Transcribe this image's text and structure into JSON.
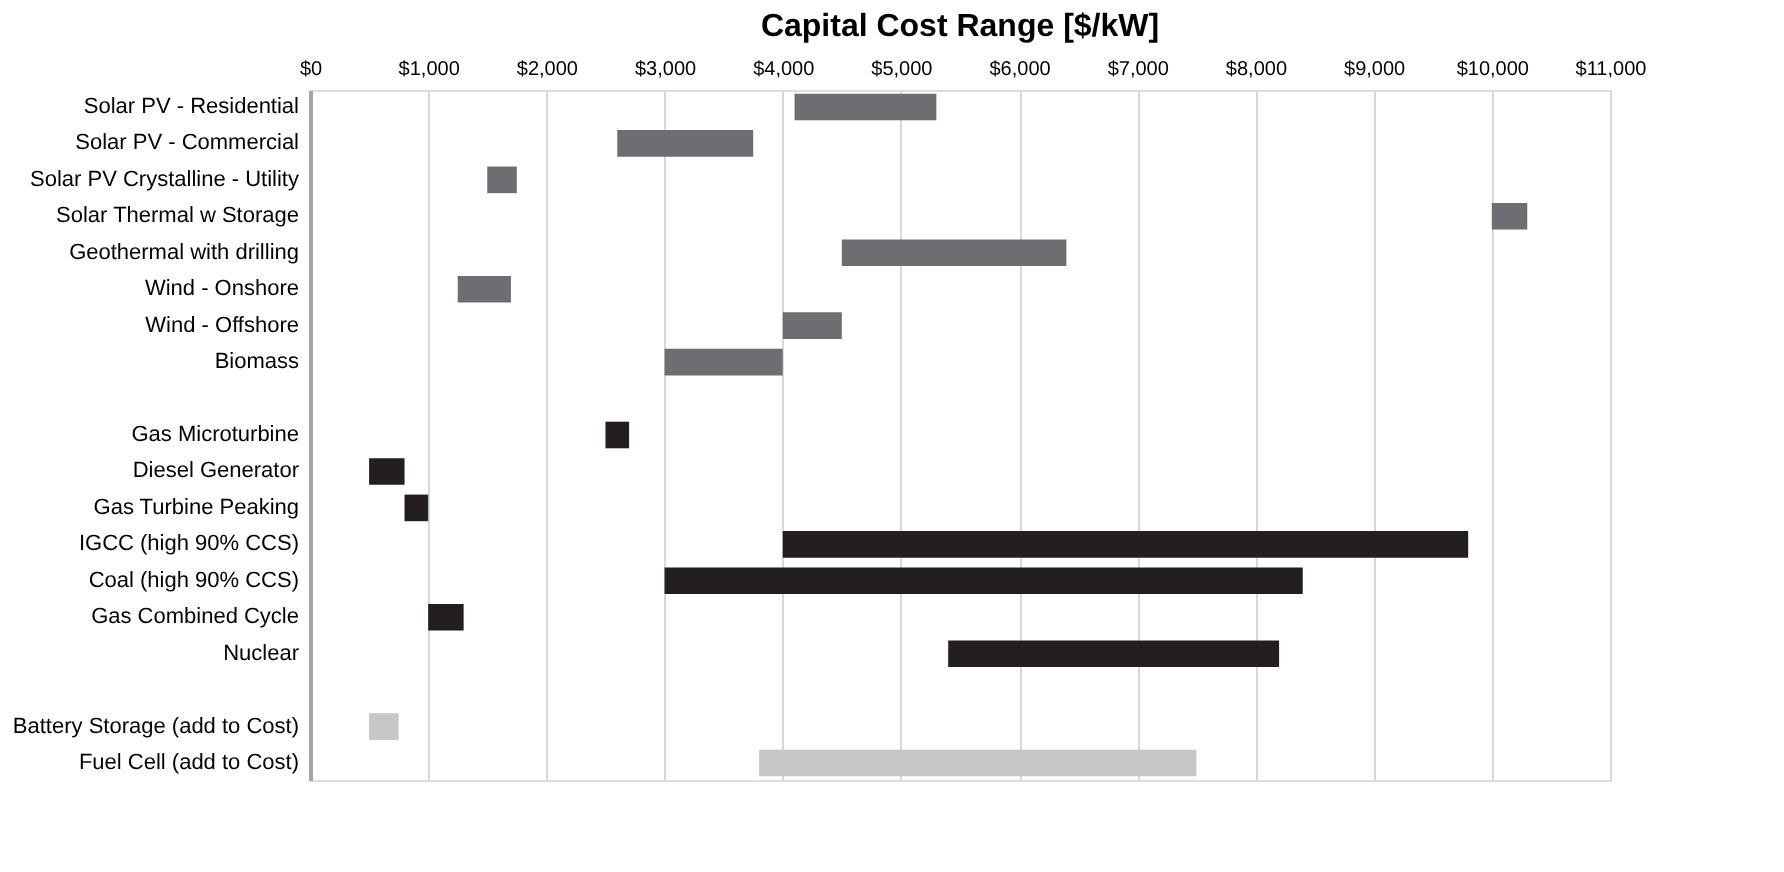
{
  "chart_data": {
    "type": "bar",
    "orientation": "horizontal",
    "title": "Capital Cost Range [$/kW]",
    "categories": [
      "Solar PV - Residential",
      "Solar PV - Commercial",
      "Solar PV Crystalline - Utility",
      "Solar Thermal w Storage",
      "Geothermal with drilling",
      "Wind - Onshore",
      "Wind - Offshore",
      "Biomass",
      null,
      "Gas Microturbine",
      "Diesel Generator",
      "Gas Turbine Peaking",
      "IGCC (high 90% CCS)",
      "Coal (high 90% CCS)",
      "Gas Combined Cycle",
      "Nuclear",
      null,
      "Battery Storage (add to Cost)",
      "Fuel Cell (add to Cost)"
    ],
    "base": [
      4100,
      2600,
      1500,
      10000,
      4500,
      1250,
      4000,
      3000,
      null,
      2500,
      500,
      800,
      4000,
      3000,
      1000,
      5400,
      null,
      500,
      3800
    ],
    "values": [
      1200,
      1150,
      250,
      300,
      1900,
      450,
      500,
      1000,
      null,
      200,
      300,
      200,
      5800,
      5400,
      300,
      2800,
      null,
      250,
      3700
    ],
    "colors": [
      "#6d6e71",
      "#6d6e71",
      "#6d6e71",
      "#6d6e71",
      "#6d6e71",
      "#6d6e71",
      "#6d6e71",
      "#6d6e71",
      null,
      "#231f20",
      "#231f20",
      "#231f20",
      "#231f20",
      "#231f20",
      "#231f20",
      "#231f20",
      null,
      "#c6c7c8",
      "#c6c7c8"
    ],
    "xlim": [
      0,
      11000
    ],
    "xticks": [
      {
        "value": 0,
        "label": "$0"
      },
      {
        "value": 1000,
        "label": "$1,000"
      },
      {
        "value": 2000,
        "label": "$2,000"
      },
      {
        "value": 3000,
        "label": "$3,000"
      },
      {
        "value": 4000,
        "label": "$4,000"
      },
      {
        "value": 5000,
        "label": "$5,000"
      },
      {
        "value": 6000,
        "label": "$6,000"
      },
      {
        "value": 7000,
        "label": "$7,000"
      },
      {
        "value": 8000,
        "label": "$8,000"
      },
      {
        "value": 9000,
        "label": "$9,000"
      },
      {
        "value": 10000,
        "label": "$10,000"
      },
      {
        "value": 11000,
        "label": "$11,000"
      }
    ],
    "grid": "x",
    "legend": false
  }
}
